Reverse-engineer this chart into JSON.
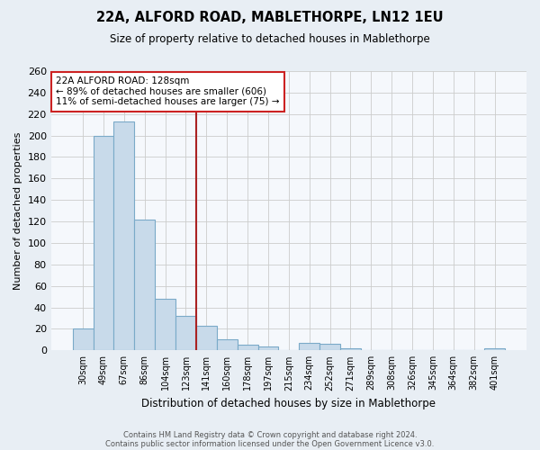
{
  "title": "22A, ALFORD ROAD, MABLETHORPE, LN12 1EU",
  "subtitle": "Size of property relative to detached houses in Mablethorpe",
  "xlabel": "Distribution of detached houses by size in Mablethorpe",
  "ylabel": "Number of detached properties",
  "footnote1": "Contains HM Land Registry data © Crown copyright and database right 2024.",
  "footnote2": "Contains public sector information licensed under the Open Government Licence v3.0.",
  "bar_labels": [
    "30sqm",
    "49sqm",
    "67sqm",
    "86sqm",
    "104sqm",
    "123sqm",
    "141sqm",
    "160sqm",
    "178sqm",
    "197sqm",
    "215sqm",
    "234sqm",
    "252sqm",
    "271sqm",
    "289sqm",
    "308sqm",
    "326sqm",
    "345sqm",
    "364sqm",
    "382sqm",
    "401sqm"
  ],
  "bar_values": [
    20,
    200,
    213,
    122,
    48,
    32,
    23,
    10,
    5,
    4,
    0,
    7,
    6,
    2,
    0,
    0,
    0,
    0,
    0,
    0,
    2
  ],
  "bar_color": "#c8daea",
  "bar_edge_color": "#7aaac8",
  "ylim": [
    0,
    260
  ],
  "yticks": [
    0,
    20,
    40,
    60,
    80,
    100,
    120,
    140,
    160,
    180,
    200,
    220,
    240,
    260
  ],
  "red_line_x": 5.5,
  "red_line_color": "#aa2222",
  "annotation_title": "22A ALFORD ROAD: 128sqm",
  "annotation_line1": "← 89% of detached houses are smaller (606)",
  "annotation_line2": "11% of semi-detached houses are larger (75) →",
  "background_color": "#e8eef4",
  "plot_bg_color": "#f5f8fc",
  "grid_color": "#cccccc"
}
